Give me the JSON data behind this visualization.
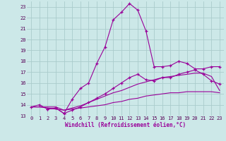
{
  "xlabel": "Windchill (Refroidissement éolien,°C)",
  "background_color": "#cce8e8",
  "grid_color": "#aacccc",
  "line_color": "#990099",
  "xlim": [
    -0.5,
    23.5
  ],
  "ylim": [
    13.0,
    23.5
  ],
  "yticks": [
    13,
    14,
    15,
    16,
    17,
    18,
    19,
    20,
    21,
    22,
    23
  ],
  "xticks": [
    0,
    1,
    2,
    3,
    4,
    5,
    6,
    7,
    8,
    9,
    10,
    11,
    12,
    13,
    14,
    15,
    16,
    17,
    18,
    19,
    20,
    21,
    22,
    23
  ],
  "series": [
    {
      "x": [
        0,
        1,
        2,
        3,
        4,
        5,
        6,
        7,
        8,
        9,
        10,
        11,
        12,
        13,
        14,
        15,
        16,
        17,
        18,
        19,
        20,
        21,
        22,
        23
      ],
      "y": [
        13.8,
        14.0,
        13.6,
        13.7,
        13.2,
        14.5,
        15.5,
        16.0,
        17.8,
        19.3,
        21.8,
        22.5,
        23.3,
        22.7,
        20.8,
        17.5,
        17.5,
        17.6,
        18.0,
        17.8,
        17.3,
        17.3,
        17.5,
        17.5
      ],
      "marker": "+"
    },
    {
      "x": [
        2,
        3,
        4,
        5,
        6,
        7,
        8,
        9,
        10,
        11,
        12,
        13,
        14,
        15,
        16,
        17,
        18,
        19,
        20,
        21,
        22,
        23
      ],
      "y": [
        13.6,
        13.7,
        13.2,
        13.5,
        13.8,
        14.2,
        14.6,
        15.0,
        15.5,
        16.0,
        16.5,
        16.8,
        16.3,
        16.2,
        16.5,
        16.5,
        16.8,
        17.0,
        17.2,
        16.8,
        16.2,
        15.9
      ],
      "marker": "+"
    },
    {
      "x": [
        0,
        1,
        2,
        3,
        4,
        5,
        6,
        7,
        8,
        9,
        10,
        11,
        12,
        13,
        14,
        15,
        16,
        17,
        18,
        19,
        20,
        21,
        22,
        23
      ],
      "y": [
        13.8,
        13.8,
        13.8,
        13.8,
        13.5,
        13.6,
        13.7,
        13.8,
        13.9,
        14.0,
        14.2,
        14.3,
        14.5,
        14.6,
        14.8,
        14.9,
        15.0,
        15.1,
        15.1,
        15.2,
        15.2,
        15.2,
        15.2,
        15.1
      ],
      "marker": null
    },
    {
      "x": [
        0,
        1,
        2,
        3,
        4,
        5,
        6,
        7,
        8,
        9,
        10,
        11,
        12,
        13,
        14,
        15,
        16,
        17,
        18,
        19,
        20,
        21,
        22,
        23
      ],
      "y": [
        13.8,
        13.8,
        13.7,
        13.6,
        13.5,
        13.7,
        13.9,
        14.2,
        14.5,
        14.8,
        15.1,
        15.3,
        15.6,
        15.9,
        16.1,
        16.3,
        16.5,
        16.6,
        16.7,
        16.8,
        16.9,
        16.9,
        16.6,
        15.3
      ],
      "marker": null
    }
  ]
}
